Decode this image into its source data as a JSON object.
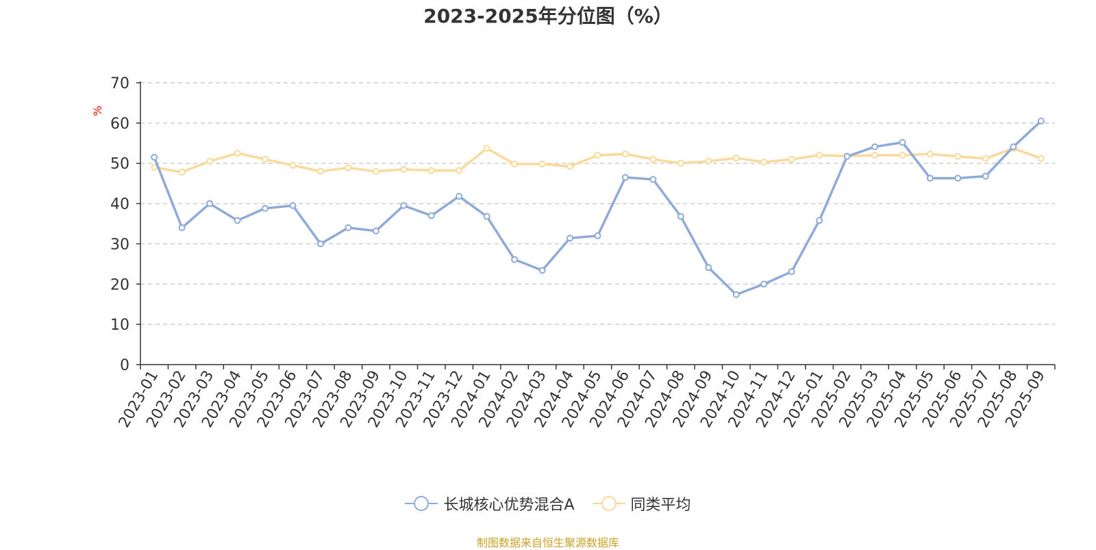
{
  "title": "2023-2025年分位图（%）",
  "source_note": "制图数据来自恒生聚源数据库",
  "chart_data": {
    "type": "line",
    "ylabel": "%",
    "ylim": [
      0,
      70
    ],
    "yticks": [
      0,
      10,
      20,
      30,
      40,
      50,
      60,
      70
    ],
    "grid": true,
    "legend_position": "bottom",
    "categories": [
      "2023-01",
      "2023-02",
      "2023-03",
      "2023-04",
      "2023-05",
      "2023-06",
      "2023-07",
      "2023-08",
      "2023-09",
      "2023-10",
      "2023-11",
      "2023-12",
      "2024-01",
      "2024-02",
      "2024-03",
      "2024-04",
      "2024-05",
      "2024-06",
      "2024-07",
      "2024-08",
      "2024-09",
      "2024-10",
      "2024-11",
      "2024-12",
      "2025-01",
      "2025-02",
      "2025-03",
      "2025-04",
      "2025-05",
      "2025-06",
      "2025-07",
      "2025-08",
      "2025-09"
    ],
    "series": [
      {
        "name": "长城核心优势混合A",
        "color": "#8eaad9",
        "values": [
          51.5,
          34,
          40,
          35.8,
          38.8,
          39.5,
          30,
          34,
          33.2,
          39.5,
          37,
          41.8,
          36.8,
          26.1,
          23.4,
          31.4,
          32,
          46.5,
          46,
          36.8,
          24.1,
          17.4,
          20,
          23.1,
          35.8,
          51.7,
          54.1,
          55.2,
          46.3,
          46.3,
          46.8,
          54.1,
          60.5
        ]
      },
      {
        "name": "同类平均",
        "color": "#fbd99a",
        "values": [
          49,
          47.8,
          50.5,
          52.5,
          51,
          49.5,
          48,
          48.9,
          48,
          48.5,
          48.2,
          48.2,
          53.7,
          49.8,
          49.8,
          49.2,
          52,
          52.3,
          51,
          50,
          50.5,
          51.3,
          50.3,
          51,
          52,
          51.8,
          52,
          52,
          52.3,
          51.7,
          51.2,
          53.7,
          51.2
        ]
      }
    ]
  }
}
